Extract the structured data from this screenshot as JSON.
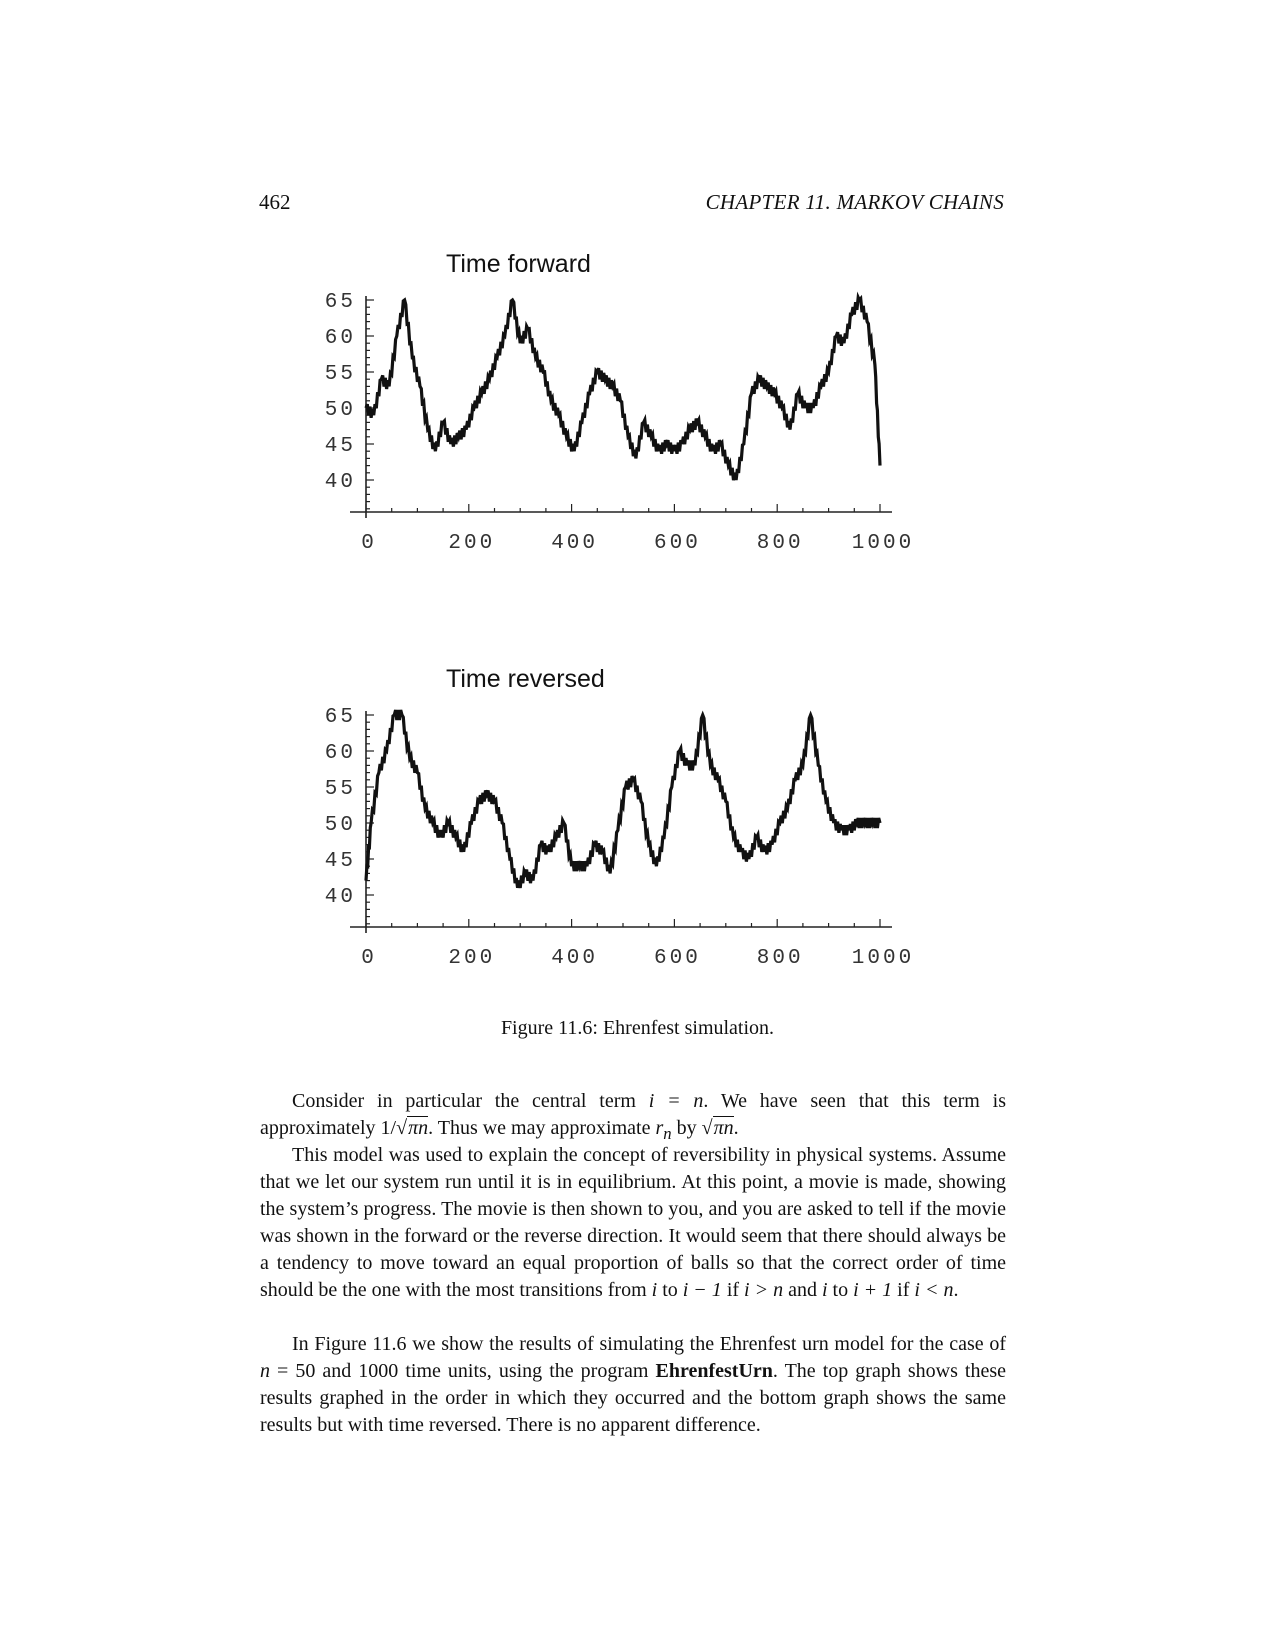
{
  "header": {
    "page_number": "462",
    "running_head": "CHAPTER 11.  MARKOV CHAINS"
  },
  "figure": {
    "caption": "Figure 11.6: Ehrenfest simulation."
  },
  "chart_data": [
    {
      "type": "line",
      "title": "Time forward",
      "xlabel": "",
      "ylabel": "",
      "xlim": [
        0,
        1000
      ],
      "ylim": [
        35,
        65
      ],
      "x_ticks": [
        0,
        200,
        400,
        600,
        800,
        1000
      ],
      "x_tick_labels": [
        "0",
        "200",
        "400",
        "600",
        "800",
        "1000"
      ],
      "y_ticks": [
        40,
        45,
        50,
        55,
        60,
        65
      ],
      "y_tick_labels": [
        "40",
        "45",
        "50",
        "55",
        "60",
        "65"
      ],
      "grid": false,
      "x": [
        0,
        15,
        30,
        45,
        60,
        75,
        90,
        105,
        120,
        135,
        150,
        165,
        180,
        195,
        210,
        225,
        240,
        255,
        270,
        285,
        300,
        315,
        330,
        345,
        360,
        375,
        390,
        405,
        420,
        435,
        450,
        465,
        480,
        495,
        510,
        525,
        540,
        555,
        570,
        585,
        600,
        615,
        630,
        645,
        660,
        675,
        690,
        705,
        720,
        735,
        750,
        765,
        780,
        795,
        810,
        825,
        840,
        855,
        870,
        885,
        900,
        915,
        930,
        945,
        960,
        975,
        990,
        1000
      ],
      "y": [
        50,
        49,
        54,
        53,
        60,
        65,
        57,
        53,
        47,
        44,
        48,
        45,
        46,
        47,
        50,
        52,
        54,
        57,
        60,
        65,
        59,
        61,
        57,
        55,
        51,
        49,
        46,
        44,
        48,
        52,
        55,
        54,
        53,
        51,
        46,
        43,
        48,
        46,
        44,
        45,
        44,
        45,
        47,
        48,
        46,
        44,
        45,
        42,
        40,
        45,
        52,
        54,
        53,
        52,
        50,
        47,
        52,
        50,
        50,
        53,
        55,
        60,
        59,
        63,
        65,
        62,
        56,
        42
      ],
      "series": [
        {
          "name": ""
        }
      ]
    },
    {
      "type": "line",
      "title": "Time reversed",
      "xlabel": "",
      "ylabel": "",
      "xlim": [
        0,
        1000
      ],
      "ylim": [
        35,
        65
      ],
      "x_ticks": [
        0,
        200,
        400,
        600,
        800,
        1000
      ],
      "x_tick_labels": [
        "0",
        "200",
        "400",
        "600",
        "800",
        "1000"
      ],
      "y_ticks": [
        40,
        45,
        50,
        55,
        60,
        65
      ],
      "y_tick_labels": [
        "40",
        "45",
        "50",
        "55",
        "60",
        "65"
      ],
      "grid": false,
      "x": [
        0,
        10,
        25,
        40,
        55,
        70,
        85,
        100,
        115,
        130,
        145,
        160,
        175,
        190,
        205,
        220,
        235,
        250,
        265,
        280,
        295,
        310,
        325,
        340,
        355,
        370,
        385,
        400,
        415,
        430,
        445,
        460,
        475,
        490,
        505,
        520,
        535,
        550,
        565,
        580,
        595,
        610,
        625,
        640,
        655,
        670,
        685,
        700,
        715,
        730,
        745,
        760,
        775,
        790,
        805,
        820,
        835,
        850,
        865,
        880,
        895,
        910,
        925,
        940,
        955,
        970,
        985,
        1000
      ],
      "y": [
        42,
        50,
        57,
        60,
        65,
        65,
        59,
        57,
        52,
        50,
        48,
        50,
        48,
        46,
        50,
        53,
        54,
        53,
        50,
        45,
        41,
        43,
        42,
        47,
        46,
        48,
        50,
        44,
        44,
        44,
        47,
        46,
        43,
        49,
        55,
        56,
        53,
        47,
        44,
        48,
        55,
        60,
        58,
        58,
        65,
        58,
        56,
        53,
        48,
        46,
        45,
        48,
        46,
        47,
        50,
        52,
        56,
        58,
        65,
        58,
        53,
        50,
        49,
        49,
        50,
        50,
        50,
        50
      ],
      "series": [
        {
          "name": ""
        }
      ]
    }
  ],
  "body": {
    "para1_a": "Consider in particular the central term ",
    "para1_eq1": "i = n",
    "para1_b": ". We have seen that this term is approximately 1/",
    "para1_sqrt1": "πn",
    "para1_c": ". Thus we may approximate ",
    "para1_rn": "r",
    "para1_rn_sub": "n",
    "para1_d": " by ",
    "para1_sqrt2": "πn",
    "para1_e": ".",
    "para2_a": "This model was used to explain the concept of reversibility in physical systems. Assume that we let our system run until it is in equilibrium. At this point, a movie is made, showing the system’s progress. The movie is then shown to you, and you are asked to tell if the movie was shown in the forward or the reverse direction. It would seem that there should always be a tendency to move toward an equal proportion of balls so that the correct order of time should be the one with the most transitions from ",
    "para2_m1": "i",
    "para2_b": " to ",
    "para2_m2": "i − 1",
    "para2_c": " if ",
    "para2_m3": "i > n",
    "para2_d": " and ",
    "para2_m4": "i",
    "para2_e": " to ",
    "para2_m5": "i + 1",
    "para2_f": " if ",
    "para2_m6": "i < n",
    "para2_g": ".",
    "para3_a": "In Figure 11.6 we show the results of simulating the Ehrenfest urn model for the case of ",
    "para3_m1": "n",
    "para3_b": " = 50 and 1000 time units, using the program ",
    "para3_prog": "EhrenfestUrn",
    "para3_c": ". The top graph shows these results graphed in the order in which they occurred and the bottom graph shows the same results but with time reversed. There is no apparent difference."
  }
}
